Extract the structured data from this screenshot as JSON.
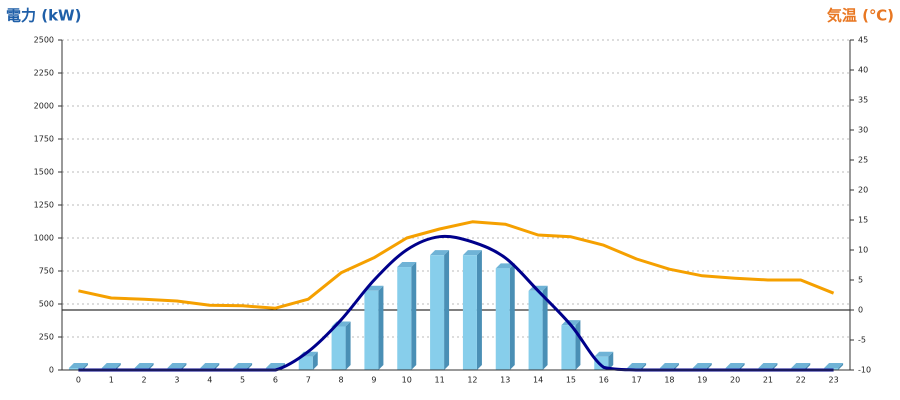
{
  "chart_data": {
    "type": "combo",
    "y_title": "電力 (kW)",
    "y2_title": "気温 (℃)",
    "y_title_color": "#1f5fa8",
    "y2_title_color": "#e87722",
    "categories": [
      "0",
      "1",
      "2",
      "3",
      "4",
      "5",
      "6",
      "7",
      "8",
      "9",
      "10",
      "11",
      "12",
      "13",
      "14",
      "15",
      "16",
      "17",
      "18",
      "19",
      "20",
      "21",
      "22",
      "23"
    ],
    "series": [
      {
        "type": "bar",
        "color": "#87ceeb",
        "values": [
          0,
          0,
          0,
          0,
          0,
          0,
          0,
          100,
          330,
          600,
          780,
          870,
          870,
          770,
          600,
          340,
          100,
          0,
          0,
          0,
          0,
          0,
          0,
          0
        ]
      },
      {
        "type": "line",
        "color": "#00008b",
        "smooth": true,
        "values": [
          0,
          0,
          0,
          0,
          0,
          0,
          0,
          140,
          380,
          680,
          910,
          1010,
          970,
          850,
          600,
          340,
          20,
          0,
          0,
          0,
          0,
          0,
          0,
          0
        ]
      },
      {
        "type": "line",
        "axis": "y2",
        "color": "#f5a000",
        "values": [
          3.2,
          2.0,
          1.8,
          1.5,
          0.8,
          0.7,
          0.3,
          1.8,
          6.2,
          8.7,
          12,
          13.5,
          14.7,
          14.3,
          12.5,
          12.2,
          10.8,
          8.5,
          6.8,
          5.7,
          5.3,
          5,
          5,
          2.8
        ]
      }
    ],
    "ylim": [
      0,
      2500
    ],
    "yticks": [
      0,
      250,
      500,
      750,
      1000,
      1250,
      1500,
      1750,
      2000,
      2250,
      2500
    ],
    "y2lim": [
      -10,
      45
    ],
    "y2ticks": [
      -10,
      -5,
      0,
      5,
      10,
      15,
      20,
      25,
      30,
      35,
      40,
      45
    ],
    "grid": true,
    "y2_zero_line": true
  }
}
